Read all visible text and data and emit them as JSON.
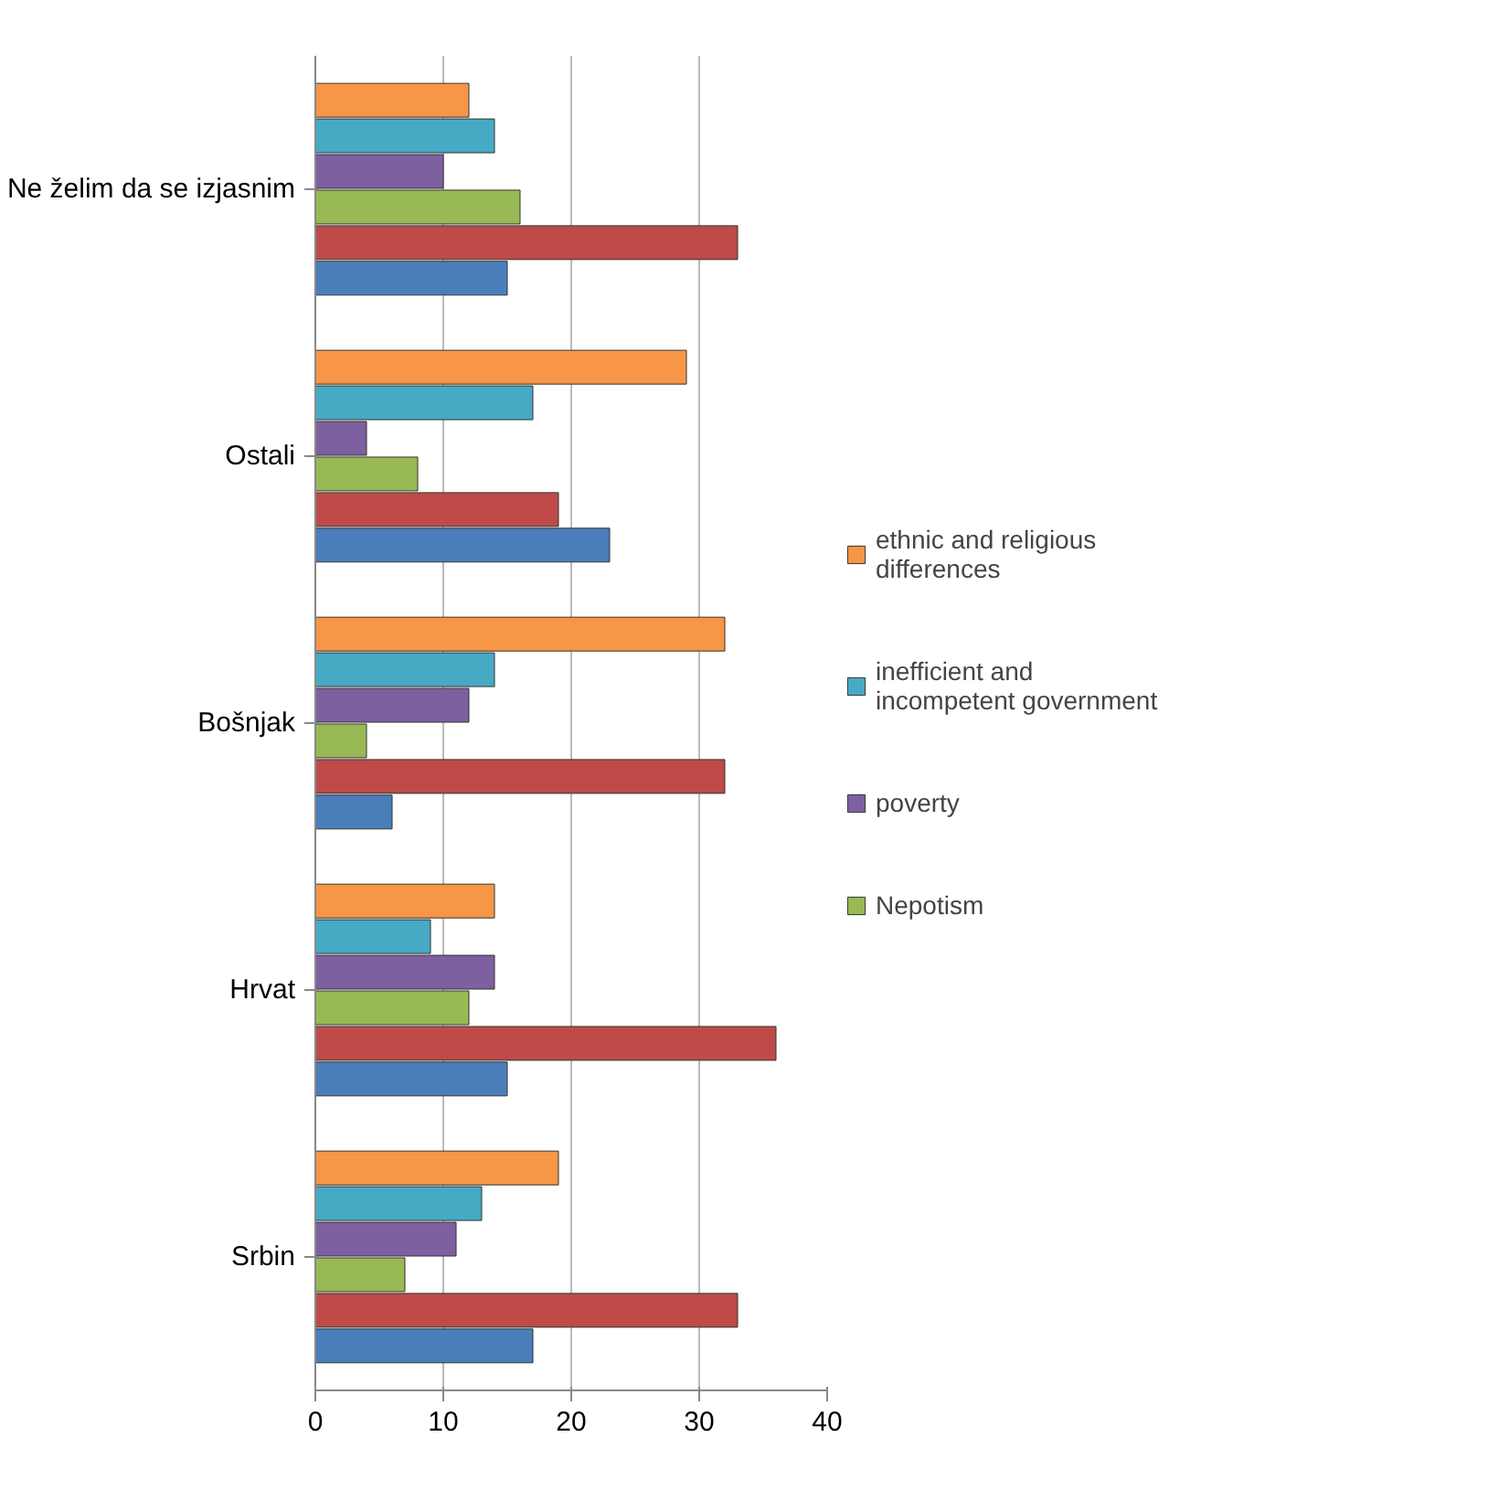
{
  "chart_data": {
    "type": "bar",
    "orientation": "horizontal",
    "categories": [
      "Ne želim da se izjasnim",
      "Ostali",
      "Bošnjak",
      "Hrvat",
      "Srbin"
    ],
    "series": [
      {
        "color": "#4a7ebb",
        "values": [
          15,
          23,
          6,
          15,
          17
        ]
      },
      {
        "color": "#be4b48",
        "values": [
          33,
          19,
          32,
          36,
          33
        ]
      },
      {
        "name": "Nepotism",
        "color": "#98b954",
        "values": [
          16,
          8,
          4,
          12,
          7
        ]
      },
      {
        "name": "poverty",
        "color": "#7d60a0",
        "values": [
          10,
          4,
          12,
          14,
          11
        ]
      },
      {
        "name": "inefficient and incompetent government",
        "color": "#46aac5",
        "values": [
          14,
          17,
          14,
          9,
          13
        ]
      },
      {
        "name": "ethnic and religious differences",
        "color": "#f79646",
        "values": [
          12,
          29,
          32,
          14,
          19
        ]
      }
    ],
    "xlim": [
      0,
      40
    ],
    "xticks": [
      0,
      10,
      20,
      30,
      40
    ],
    "grid": "x",
    "legend": "right"
  }
}
